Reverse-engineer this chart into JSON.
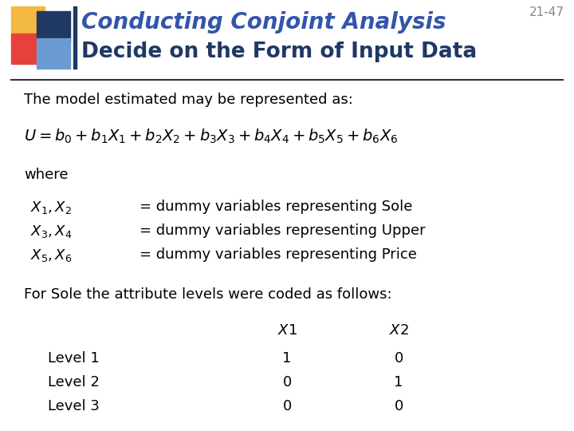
{
  "slide_number": "21-47",
  "title_line1": "Conducting Conjoint Analysis",
  "title_line2": "Decide on the Form of Input Data",
  "title_color": "#1F3864",
  "title_italic_color": "#3355AA",
  "bg_color": "#FFFFFF",
  "text_color": "#000000",
  "logo_colors": [
    "#F4B942",
    "#E8413C",
    "#1F3864",
    "#6B9BD2"
  ],
  "divider_color": "#333333",
  "slide_num_color": "#888888"
}
